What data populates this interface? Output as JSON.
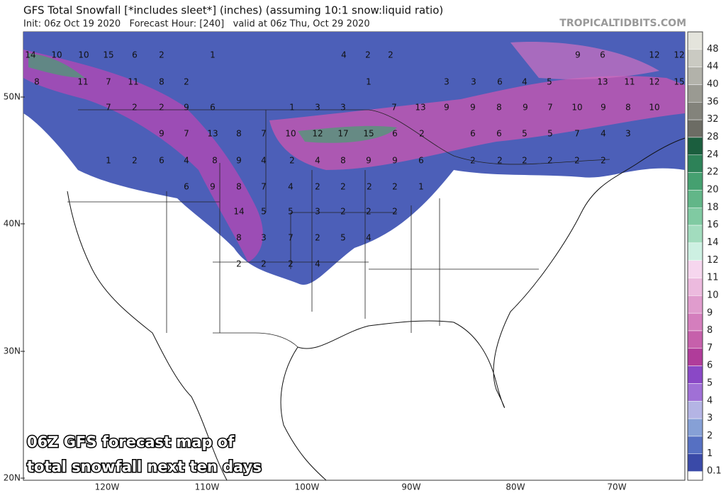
{
  "header": {
    "title": "GFS Total Snowfall [*includes sleet*] (inches) (assuming 10:1 snow:liquid ratio)",
    "subtitle": "Init: 06z Oct 19 2020   Forecast Hour: [240]   valid at 06z Thu, Oct 29 2020",
    "site": "TROPICALTIDBITS.COM"
  },
  "latitude_labels": [
    "50N",
    "40N",
    "30N",
    "20N"
  ],
  "longitude_labels": [
    "120W",
    "110W",
    "100W",
    "90W",
    "80W",
    "70W"
  ],
  "colorbar": [
    {
      "value": 48,
      "color": "#e4e4dc"
    },
    {
      "value": 44,
      "color": "#cacac2"
    },
    {
      "value": 40,
      "color": "#b2b2aa"
    },
    {
      "value": 36,
      "color": "#9a9a92"
    },
    {
      "value": 32,
      "color": "#83837b"
    },
    {
      "value": 28,
      "color": "#6c6c64"
    },
    {
      "value": 24,
      "color": "#1b5e3e"
    },
    {
      "value": 22,
      "color": "#2d8258"
    },
    {
      "value": 20,
      "color": "#45a070"
    },
    {
      "value": 18,
      "color": "#62b688"
    },
    {
      "value": 16,
      "color": "#80caa2"
    },
    {
      "value": 14,
      "color": "#a2dcbe"
    },
    {
      "value": 12,
      "color": "#cdf0e2"
    },
    {
      "value": 11,
      "color": "#f6d6ee"
    },
    {
      "value": 10,
      "color": "#ecbade"
    },
    {
      "value": 9,
      "color": "#e09ccd"
    },
    {
      "value": 8,
      "color": "#d47ebd"
    },
    {
      "value": 7,
      "color": "#c660ab"
    },
    {
      "value": 6,
      "color": "#b03c9a"
    },
    {
      "value": 5,
      "color": "#8a48c6"
    },
    {
      "value": 4,
      "color": "#a070d6"
    },
    {
      "value": 3,
      "color": "#b4b4e4"
    },
    {
      "value": 2,
      "color": "#86a0d6"
    },
    {
      "value": 1,
      "color": "#5670c2"
    },
    {
      "value": 0.1,
      "color": "#3a4aa8"
    }
  ],
  "map_labels": [
    14,
    10,
    10,
    15,
    6,
    2,
    1,
    4,
    2,
    2,
    9,
    6,
    12,
    12,
    8,
    11,
    7,
    11,
    8,
    2,
    1,
    3,
    3,
    6,
    4,
    5,
    13,
    11,
    12,
    15,
    7,
    2,
    2,
    9,
    6,
    1,
    3,
    3,
    7,
    13,
    9,
    9,
    8,
    9,
    7,
    10,
    9,
    8,
    10,
    9,
    7,
    13,
    8,
    7,
    10,
    12,
    17,
    15,
    6,
    2,
    6,
    6,
    5,
    5,
    7,
    4,
    3,
    1,
    2,
    6,
    4,
    8,
    9,
    4,
    2,
    4,
    8,
    9,
    9,
    6,
    2,
    2,
    2,
    2,
    2,
    2,
    6,
    9,
    8,
    7,
    4,
    2,
    2,
    2,
    2,
    1,
    14,
    5,
    5,
    3,
    2,
    2,
    2,
    8,
    3,
    7,
    2,
    5,
    4,
    2,
    2,
    2,
    4
  ],
  "caption": [
    "06Z GFS forecast map of",
    "total snowfall next ten days"
  ]
}
